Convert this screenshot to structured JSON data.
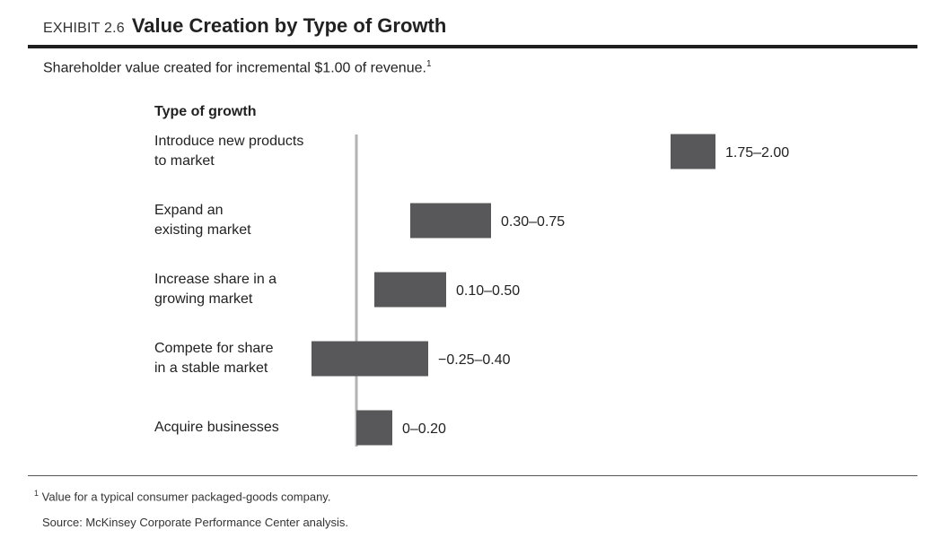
{
  "header": {
    "exhibit_label": "EXHIBIT 2.6",
    "title": "Value Creation by Type of Growth"
  },
  "subtitle": {
    "text": "Shareholder value created for incremental $1.00 of revenue.",
    "footnote_marker": "1"
  },
  "column_header": "Type of growth",
  "footnote": {
    "marker": "1",
    "text": "Value for a typical consumer packaged-goods company."
  },
  "source": "Source: McKinsey Corporate Performance Center analysis.",
  "colors": {
    "bar": "#58585a",
    "axis": "#b3b3b3",
    "text": "#222222"
  },
  "chart_data": {
    "type": "bar",
    "orientation": "horizontal",
    "style": "floating range bars",
    "categories": [
      [
        "Introduce new products",
        "to market"
      ],
      [
        "Expand an",
        "existing market"
      ],
      [
        "Increase share in a",
        "growing market"
      ],
      [
        "Compete for share",
        "in a stable market"
      ],
      [
        "Acquire businesses"
      ]
    ],
    "ranges": [
      [
        1.75,
        2.0
      ],
      [
        0.3,
        0.75
      ],
      [
        0.1,
        0.5
      ],
      [
        -0.25,
        0.4
      ],
      [
        0,
        0.2
      ]
    ],
    "value_labels": [
      "1.75–2.00",
      "0.30–0.75",
      "0.10–0.50",
      "−0.25–0.40",
      "0–0.20"
    ],
    "xlim": [
      -0.25,
      2.0
    ],
    "zero_axis": true,
    "grid": false,
    "legend": "none"
  }
}
